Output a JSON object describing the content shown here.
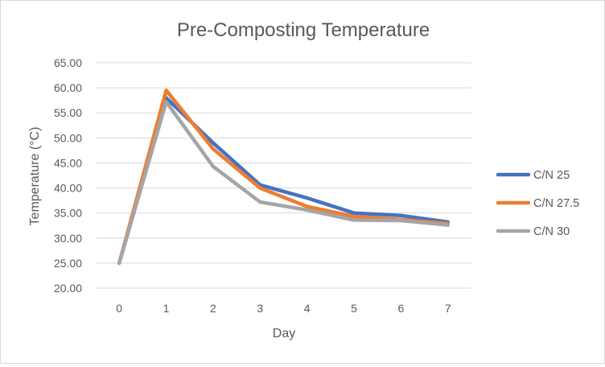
{
  "chart_data": {
    "type": "line",
    "title": "Pre-Composting Temperature",
    "xlabel": "Day",
    "ylabel": "Temperature (°C)",
    "categories": [
      "0",
      "1",
      "2",
      "3",
      "4",
      "5",
      "6",
      "7"
    ],
    "ylim": [
      20,
      65
    ],
    "yticks": [
      "20.00",
      "25.00",
      "30.00",
      "35.00",
      "40.00",
      "45.00",
      "50.00",
      "55.00",
      "60.00",
      "65.00"
    ],
    "grid": true,
    "legend_position": "right",
    "series": [
      {
        "name": "C/N 25",
        "color": "#4472c4",
        "values": [
          25.0,
          58.0,
          49.0,
          40.6,
          38.0,
          35.0,
          34.5,
          33.2
        ]
      },
      {
        "name": "C/N 27.5",
        "color": "#ed7d31",
        "values": [
          25.0,
          59.5,
          47.8,
          40.0,
          36.3,
          34.3,
          33.7,
          32.9
        ]
      },
      {
        "name": "C/N 30",
        "color": "#a5a5a5",
        "values": [
          25.0,
          57.2,
          44.3,
          37.2,
          35.6,
          33.6,
          33.5,
          32.6
        ]
      }
    ]
  }
}
